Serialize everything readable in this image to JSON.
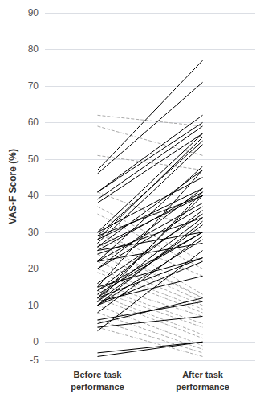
{
  "chart_data": {
    "type": "line",
    "ylabel": "VAS-F Score (%)",
    "categories": [
      "Before task\nperformance",
      "After task\nperformance"
    ],
    "ylim": [
      -5,
      90
    ],
    "yticks": [
      -5,
      0,
      10,
      20,
      30,
      40,
      50,
      60,
      70,
      80,
      90
    ],
    "grid": true,
    "series": [
      {
        "values": [
          47,
          77
        ],
        "color": "#000000",
        "line_style": "solid"
      },
      {
        "values": [
          46,
          71
        ],
        "color": "#000000",
        "line_style": "solid"
      },
      {
        "values": [
          41,
          62
        ],
        "color": "#000000",
        "line_style": "solid"
      },
      {
        "values": [
          41,
          60
        ],
        "color": "#000000",
        "line_style": "solid"
      },
      {
        "values": [
          39,
          59
        ],
        "color": "#000000",
        "line_style": "solid"
      },
      {
        "values": [
          38,
          57
        ],
        "color": "#000000",
        "line_style": "solid"
      },
      {
        "values": [
          30,
          57
        ],
        "color": "#000000",
        "line_style": "solid"
      },
      {
        "values": [
          28,
          56
        ],
        "color": "#000000",
        "line_style": "solid"
      },
      {
        "values": [
          29,
          55
        ],
        "color": "#000000",
        "line_style": "solid"
      },
      {
        "values": [
          27,
          54
        ],
        "color": "#000000",
        "line_style": "solid"
      },
      {
        "values": [
          22,
          48
        ],
        "color": "#000000",
        "line_style": "solid"
      },
      {
        "values": [
          15,
          47
        ],
        "color": "#000000",
        "line_style": "solid"
      },
      {
        "values": [
          26,
          47
        ],
        "color": "#000000",
        "line_style": "solid"
      },
      {
        "values": [
          30,
          45
        ],
        "color": "#000000",
        "line_style": "solid"
      },
      {
        "values": [
          20,
          42
        ],
        "color": "#000000",
        "line_style": "solid"
      },
      {
        "values": [
          28,
          42
        ],
        "color": "#000000",
        "line_style": "solid"
      },
      {
        "values": [
          11,
          41
        ],
        "color": "#000000",
        "line_style": "solid"
      },
      {
        "values": [
          25,
          41
        ],
        "color": "#000000",
        "line_style": "solid"
      },
      {
        "values": [
          12,
          40
        ],
        "color": "#000000",
        "line_style": "solid"
      },
      {
        "values": [
          26,
          40
        ],
        "color": "#000000",
        "line_style": "solid"
      },
      {
        "values": [
          29,
          40
        ],
        "color": "#000000",
        "line_style": "solid"
      },
      {
        "values": [
          22,
          38
        ],
        "color": "#000000",
        "line_style": "solid"
      },
      {
        "values": [
          20,
          37
        ],
        "color": "#000000",
        "line_style": "solid"
      },
      {
        "values": [
          14,
          36
        ],
        "color": "#000000",
        "line_style": "solid"
      },
      {
        "values": [
          16,
          35
        ],
        "color": "#000000",
        "line_style": "solid"
      },
      {
        "values": [
          24,
          34
        ],
        "color": "#000000",
        "line_style": "solid"
      },
      {
        "values": [
          12,
          34
        ],
        "color": "#000000",
        "line_style": "solid"
      },
      {
        "values": [
          10,
          33
        ],
        "color": "#000000",
        "line_style": "solid"
      },
      {
        "values": [
          11,
          32
        ],
        "color": "#000000",
        "line_style": "solid"
      },
      {
        "values": [
          13,
          30
        ],
        "color": "#000000",
        "line_style": "solid"
      },
      {
        "values": [
          14,
          30
        ],
        "color": "#000000",
        "line_style": "solid"
      },
      {
        "values": [
          25,
          30
        ],
        "color": "#000000",
        "line_style": "solid"
      },
      {
        "values": [
          8,
          29
        ],
        "color": "#000000",
        "line_style": "solid"
      },
      {
        "values": [
          10,
          28
        ],
        "color": "#000000",
        "line_style": "solid"
      },
      {
        "values": [
          22,
          27
        ],
        "color": "#000000",
        "line_style": "solid"
      },
      {
        "values": [
          3,
          25
        ],
        "color": "#000000",
        "line_style": "solid"
      },
      {
        "values": [
          15,
          23
        ],
        "color": "#000000",
        "line_style": "solid"
      },
      {
        "values": [
          12,
          23
        ],
        "color": "#000000",
        "line_style": "solid"
      },
      {
        "values": [
          10,
          22
        ],
        "color": "#000000",
        "line_style": "solid"
      },
      {
        "values": [
          11,
          18
        ],
        "color": "#000000",
        "line_style": "solid"
      },
      {
        "values": [
          5,
          12
        ],
        "color": "#000000",
        "line_style": "solid"
      },
      {
        "values": [
          6,
          11
        ],
        "color": "#000000",
        "line_style": "solid"
      },
      {
        "values": [
          4,
          7
        ],
        "color": "#000000",
        "line_style": "solid"
      },
      {
        "values": [
          -3,
          0
        ],
        "color": "#000000",
        "line_style": "solid"
      },
      {
        "values": [
          -4,
          0
        ],
        "color": "#000000",
        "line_style": "solid"
      },
      {
        "values": [
          62,
          59
        ],
        "color": "#aaaaaa",
        "line_style": "dashed"
      },
      {
        "values": [
          59,
          51
        ],
        "color": "#aaaaaa",
        "line_style": "dashed"
      },
      {
        "values": [
          51,
          47
        ],
        "color": "#aaaaaa",
        "line_style": "dashed"
      },
      {
        "values": [
          41,
          30
        ],
        "color": "#aaaaaa",
        "line_style": "dashed"
      },
      {
        "values": [
          37,
          22
        ],
        "color": "#aaaaaa",
        "line_style": "dashed"
      },
      {
        "values": [
          35,
          20
        ],
        "color": "#aaaaaa",
        "line_style": "dashed"
      },
      {
        "values": [
          30,
          18
        ],
        "color": "#aaaaaa",
        "line_style": "dashed"
      },
      {
        "values": [
          30,
          13
        ],
        "color": "#aaaaaa",
        "line_style": "dashed"
      },
      {
        "values": [
          27,
          12
        ],
        "color": "#aaaaaa",
        "line_style": "dashed"
      },
      {
        "values": [
          26,
          12
        ],
        "color": "#aaaaaa",
        "line_style": "dashed"
      },
      {
        "values": [
          24,
          11
        ],
        "color": "#aaaaaa",
        "line_style": "dashed"
      },
      {
        "values": [
          22,
          10
        ],
        "color": "#aaaaaa",
        "line_style": "dashed"
      },
      {
        "values": [
          20,
          9
        ],
        "color": "#aaaaaa",
        "line_style": "dashed"
      },
      {
        "values": [
          19,
          8
        ],
        "color": "#aaaaaa",
        "line_style": "dashed"
      },
      {
        "values": [
          16,
          7
        ],
        "color": "#aaaaaa",
        "line_style": "dashed"
      },
      {
        "values": [
          15,
          5
        ],
        "color": "#aaaaaa",
        "line_style": "dashed"
      },
      {
        "values": [
          14,
          4
        ],
        "color": "#aaaaaa",
        "line_style": "dashed"
      },
      {
        "values": [
          13,
          2
        ],
        "color": "#aaaaaa",
        "line_style": "dashed"
      },
      {
        "values": [
          12,
          1
        ],
        "color": "#aaaaaa",
        "line_style": "dashed"
      },
      {
        "values": [
          10,
          -1
        ],
        "color": "#aaaaaa",
        "line_style": "dashed"
      },
      {
        "values": [
          8,
          -2
        ],
        "color": "#aaaaaa",
        "line_style": "dashed"
      },
      {
        "values": [
          6,
          -3
        ],
        "color": "#aaaaaa",
        "line_style": "dashed"
      },
      {
        "values": [
          4,
          -4
        ],
        "color": "#aaaaaa",
        "line_style": "dashed"
      }
    ]
  }
}
